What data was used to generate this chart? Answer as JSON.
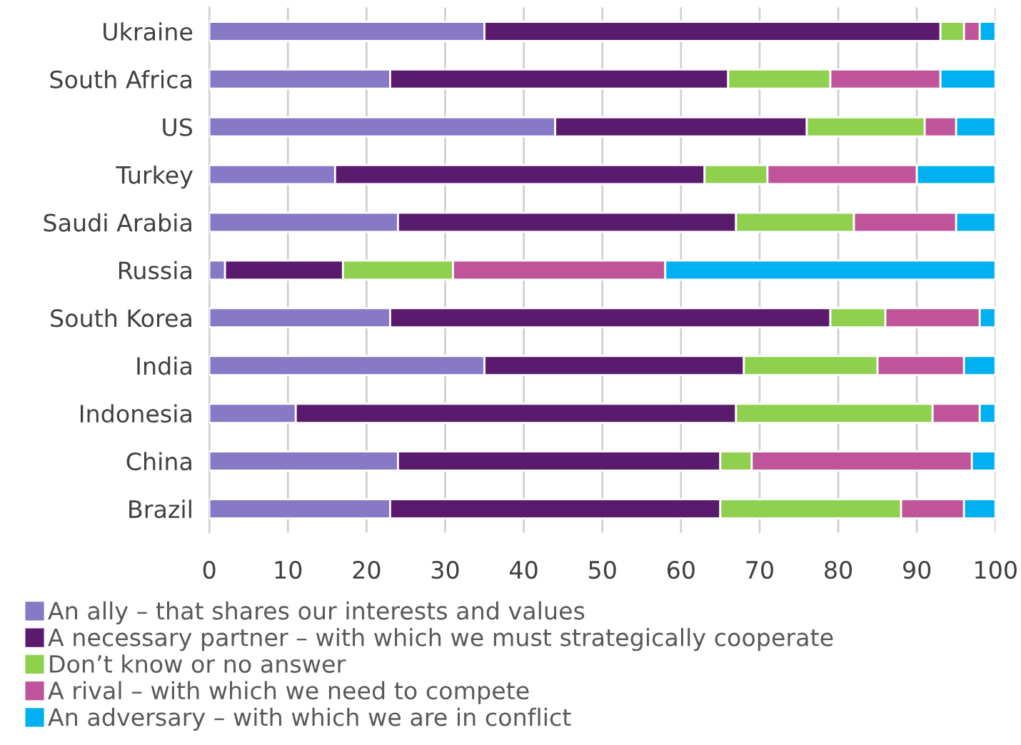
{
  "chart_data": {
    "type": "bar",
    "orientation": "horizontal",
    "stacked": true,
    "categories": [
      "Ukraine",
      "South Africa",
      "US",
      "Turkey",
      "Saudi Arabia",
      "Russia",
      "South Korea",
      "India",
      "Indonesia",
      "China",
      "Brazil"
    ],
    "series": [
      {
        "name": "An ally – that shares our interests and values",
        "color": "#8779c5",
        "values": [
          35,
          23,
          44,
          16,
          24,
          2,
          23,
          35,
          11,
          24,
          23
        ]
      },
      {
        "name": "A necessary partner – with which we must strategically cooperate",
        "color": "#5a1a6e",
        "values": [
          58,
          43,
          32,
          47,
          43,
          15,
          56,
          33,
          56,
          41,
          42
        ]
      },
      {
        "name": "Don’t know or no answer",
        "color": "#8fd14f",
        "values": [
          3,
          13,
          15,
          8,
          15,
          14,
          7,
          17,
          25,
          4,
          23
        ]
      },
      {
        "name": "A rival – with which we need to compete",
        "color": "#c0549a",
        "values": [
          2,
          14,
          4,
          19,
          13,
          27,
          12,
          11,
          6,
          28,
          8
        ]
      },
      {
        "name": "An adversary – with which we are in conflict",
        "color": "#00b0f0",
        "values": [
          2,
          7,
          5,
          10,
          5,
          42,
          2,
          4,
          2,
          3,
          4
        ]
      }
    ],
    "xlim": [
      0,
      100
    ],
    "xticks": [
      0,
      10,
      20,
      30,
      40,
      50,
      60,
      70,
      80,
      90,
      100
    ],
    "grid": "x",
    "legend": "bottom"
  }
}
